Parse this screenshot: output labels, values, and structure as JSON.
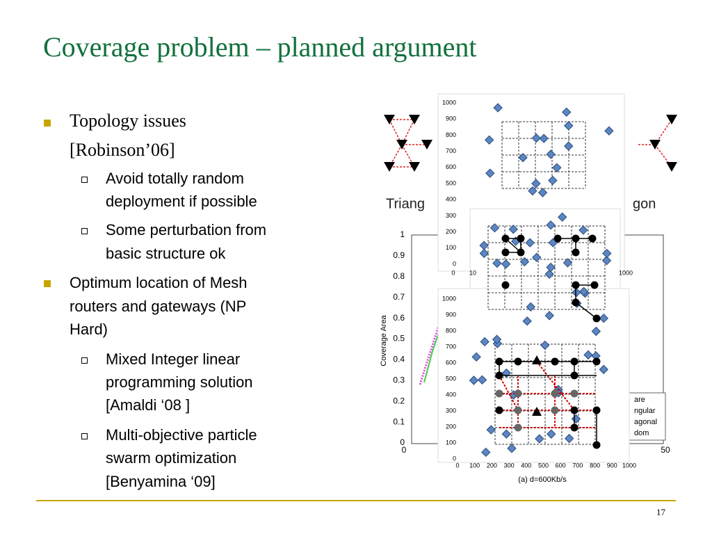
{
  "slide": {
    "title": "Coverage problem – planned argument",
    "page_number": "17",
    "bullets": [
      {
        "lines": [
          "Topology issues",
          "[Robinson’06]"
        ],
        "sub": [
          [
            "Avoid totally random",
            "deployment if possible"
          ],
          [
            "Some perturbation from",
            "basic structure ok"
          ]
        ]
      },
      {
        "lines": [
          "Optimum location of Mesh",
          "routers and gateways (NP",
          "Hard)"
        ],
        "sub": [
          [
            "Mixed Integer linear",
            "programming solution",
            "[Amaldi ‘08 ]"
          ],
          [
            "Multi-objective particle",
            "swarm optimization",
            "[Benyamina ‘09]"
          ]
        ]
      }
    ]
  },
  "figure": {
    "triangle_label": "Triang",
    "hexagon_label": "gon",
    "coverage_ylabel": "Coverage Area",
    "coverage_yticks": [
      "1",
      "0.9",
      "0.8",
      "0.7",
      "0.6",
      "0.5",
      "0.4",
      "0.3",
      "0.2",
      "0.1",
      "0"
    ],
    "coverage_xticks": [
      "0",
      "50"
    ],
    "legend_fragments": [
      "are",
      "ngular",
      "agonal",
      "dom"
    ],
    "plot1_yticks": [
      "1000",
      "900",
      "800",
      "700",
      "600",
      "500",
      "400",
      "300",
      "200",
      "100",
      "0"
    ],
    "plot1_xticks": [
      "0",
      "10",
      "1000"
    ],
    "plot3_yticks": [
      "1000",
      "900",
      "800",
      "700",
      "600",
      "500",
      "400",
      "300",
      "200",
      "100",
      "0"
    ],
    "plot3_xticks": [
      "0",
      "100",
      "200",
      "300",
      "400",
      "500",
      "600",
      "700",
      "800",
      "900",
      "1000"
    ],
    "caption": "(a) d=600Kb/s"
  }
}
